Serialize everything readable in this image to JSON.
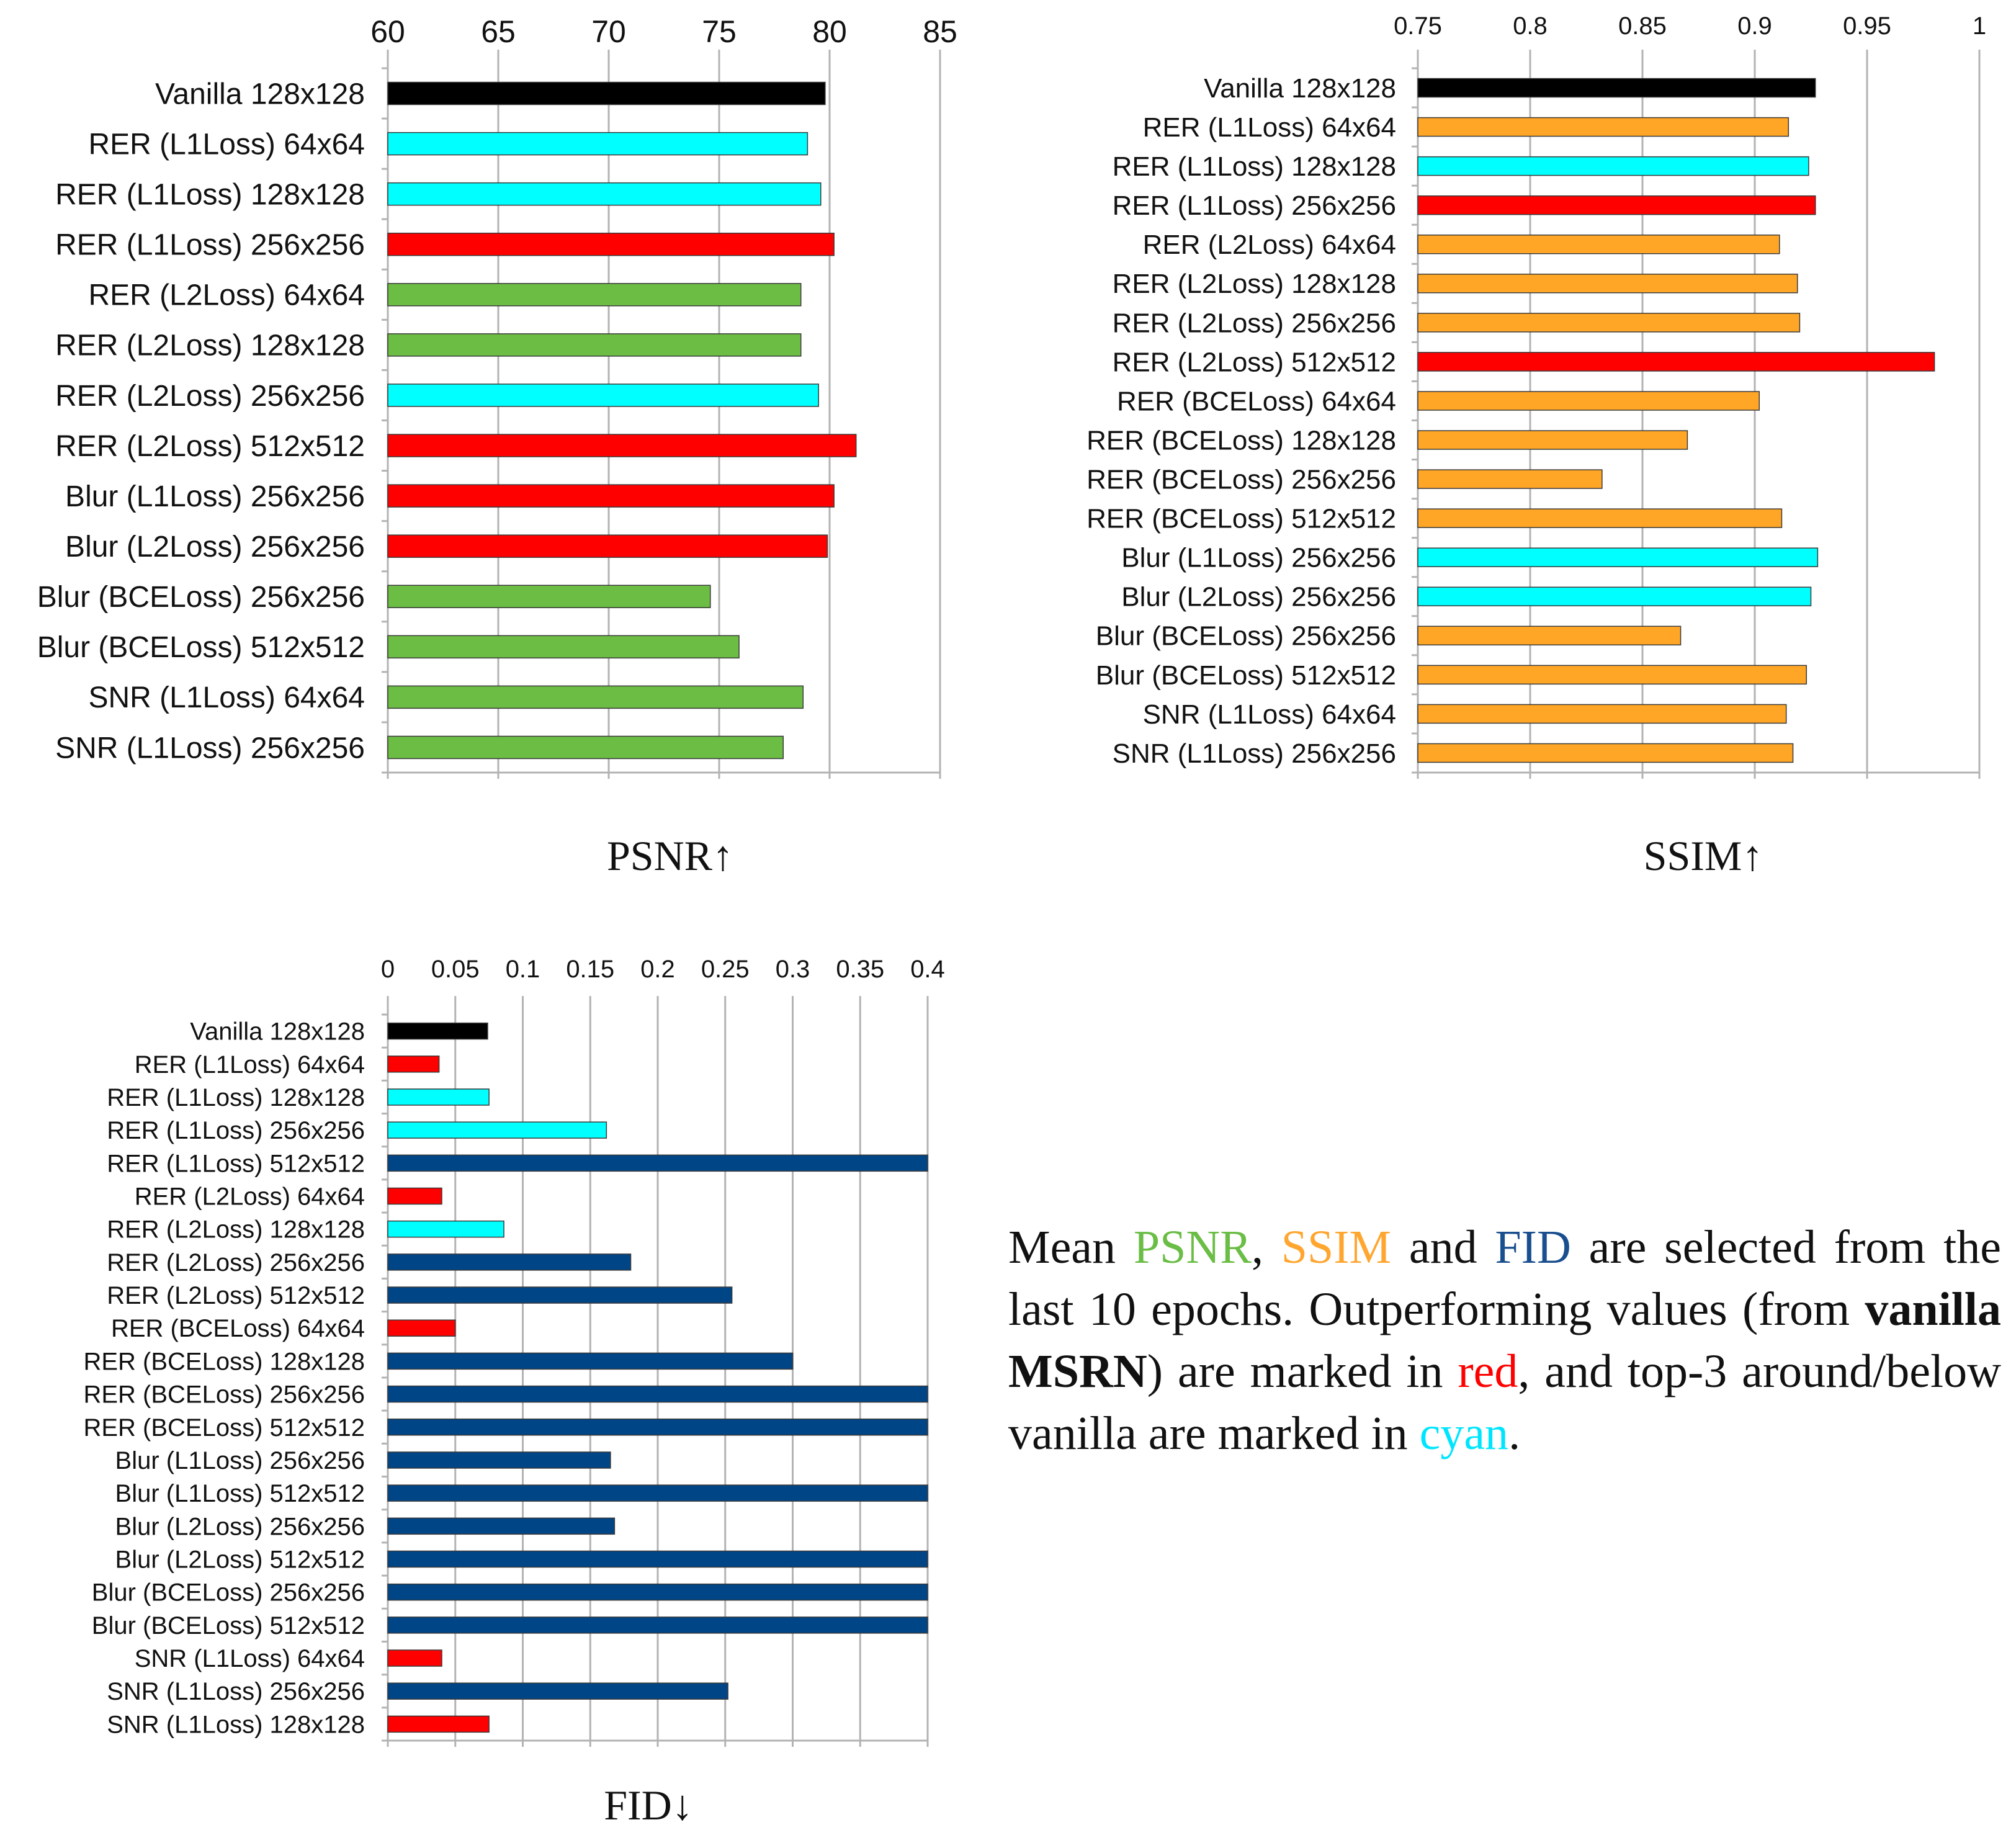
{
  "colors": {
    "black": "#000000",
    "cyan": "#00ffff",
    "red": "#ff0000",
    "green": "#6bbd44",
    "orange": "#ffa626",
    "blue": "#004586",
    "psnr_text": "#6abd45",
    "ssim_text": "#ffa630",
    "fid_text": "#1a4f8f",
    "red_text": "#ff0000",
    "cyan_text": "#00e5ff"
  },
  "chart_data": [
    {
      "type": "bar",
      "orientation": "horizontal",
      "title": "PSNR↑",
      "xlim": [
        60,
        85
      ],
      "ticks": [
        "60",
        "65",
        "70",
        "75",
        "80",
        "85"
      ],
      "grid": true,
      "categories": [
        "Vanilla 128x128",
        "RER (L1Loss) 64x64",
        "RER (L1Loss) 128x128",
        "RER (L1Loss) 256x256",
        "RER (L2Loss) 64x64",
        "RER (L2Loss) 128x128",
        "RER (L2Loss) 256x256",
        "RER (L2Loss) 512x512",
        "Blur (L1Loss) 256x256",
        "Blur (L2Loss) 256x256",
        "Blur (BCELoss) 256x256",
        "Blur (BCELoss) 512x512",
        "SNR (L1Loss) 64x64",
        "SNR (L1Loss) 256x256"
      ],
      "values": [
        79.8,
        79.0,
        79.6,
        80.2,
        78.7,
        78.7,
        79.5,
        81.2,
        80.2,
        79.9,
        74.6,
        75.9,
        78.8,
        77.9
      ],
      "bar_colors": [
        "black",
        "cyan",
        "cyan",
        "red",
        "green",
        "green",
        "cyan",
        "red",
        "red",
        "red",
        "green",
        "green",
        "green",
        "green"
      ]
    },
    {
      "type": "bar",
      "orientation": "horizontal",
      "title": "SSIM↑",
      "xlim": [
        0.75,
        1.0
      ],
      "ticks": [
        "0.75",
        "0.8",
        "0.85",
        "0.9",
        "0.95",
        "1"
      ],
      "grid": true,
      "categories": [
        "Vanilla 128x128",
        "RER (L1Loss) 64x64",
        "RER (L1Loss) 128x128",
        "RER (L1Loss) 256x256",
        "RER (L2Loss) 64x64",
        "RER (L2Loss) 128x128",
        "RER (L2Loss) 256x256",
        "RER (L2Loss) 512x512",
        "RER (BCELoss) 64x64",
        "RER (BCELoss) 128x128",
        "RER (BCELoss) 256x256",
        "RER (BCELoss) 512x512",
        "Blur (L1Loss) 256x256",
        "Blur (L2Loss) 256x256",
        "Blur (BCELoss) 256x256",
        "Blur (BCELoss) 512x512",
        "SNR (L1Loss) 64x64",
        "SNR (L1Loss) 256x256"
      ],
      "values": [
        0.927,
        0.915,
        0.924,
        0.927,
        0.911,
        0.919,
        0.92,
        0.98,
        0.902,
        0.87,
        0.832,
        0.912,
        0.928,
        0.925,
        0.867,
        0.923,
        0.914,
        0.917
      ],
      "bar_colors": [
        "black",
        "orange",
        "cyan",
        "red",
        "orange",
        "orange",
        "orange",
        "red",
        "orange",
        "orange",
        "orange",
        "orange",
        "cyan",
        "cyan",
        "orange",
        "orange",
        "orange",
        "orange"
      ]
    },
    {
      "type": "bar",
      "orientation": "horizontal",
      "title": "FID↓",
      "xlim": [
        0,
        0.4
      ],
      "ticks": [
        "0",
        "0.05",
        "0.1",
        "0.15",
        "0.2",
        "0.25",
        "0.3",
        "0.35",
        "0.4"
      ],
      "grid": true,
      "categories": [
        "Vanilla 128x128",
        "RER (L1Loss) 64x64",
        "RER (L1Loss) 128x128",
        "RER (L1Loss) 256x256",
        "RER (L1Loss) 512x512",
        "RER (L2Loss) 64x64",
        "RER (L2Loss) 128x128",
        "RER (L2Loss) 256x256",
        "RER (L2Loss) 512x512",
        "RER (BCELoss) 64x64",
        "RER (BCELoss) 128x128",
        "RER (BCELoss) 256x256",
        "RER (BCELoss) 512x512",
        "Blur (L1Loss) 256x256",
        "Blur (L1Loss) 512x512",
        "Blur (L2Loss) 256x256",
        "Blur (L2Loss) 512x512",
        "Blur (BCELoss) 256x256",
        "Blur (BCELoss) 512x512",
        "SNR (L1Loss) 64x64",
        "SNR (L1Loss) 256x256",
        "SNR (L1Loss) 128x128"
      ],
      "values": [
        0.074,
        0.038,
        0.075,
        0.162,
        0.4,
        0.04,
        0.086,
        0.18,
        0.255,
        0.05,
        0.3,
        0.4,
        0.4,
        0.165,
        0.4,
        0.168,
        0.4,
        0.4,
        0.4,
        0.04,
        0.252,
        0.075
      ],
      "bar_colors": [
        "black",
        "red",
        "cyan",
        "cyan",
        "blue",
        "red",
        "cyan",
        "blue",
        "blue",
        "red",
        "blue",
        "blue",
        "blue",
        "blue",
        "blue",
        "blue",
        "blue",
        "blue",
        "blue",
        "red",
        "blue",
        "red"
      ]
    }
  ],
  "note": {
    "t1": "Mean ",
    "psnr": "PSNR",
    "t2": ", ",
    "ssim": "SSIM",
    "t3": " and ",
    "fid": "FID",
    "t4": " are selected from the last 10 epochs.  Outperforming values (from ",
    "vanilla": "vanilla MSRN",
    "t5": ") are marked in ",
    "red": "red",
    "t6": ", and top-3 around/below vanilla are marked in ",
    "cyan": "cyan",
    "t7": "."
  }
}
